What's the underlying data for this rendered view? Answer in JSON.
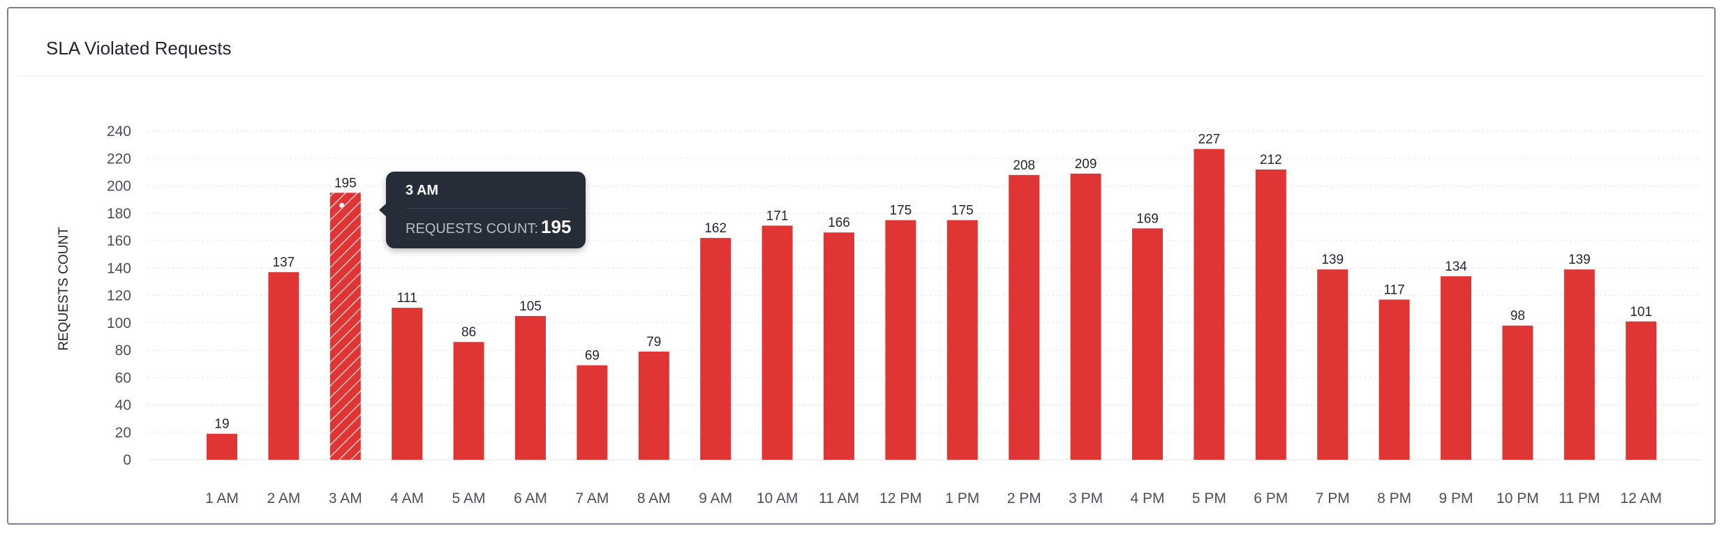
{
  "chart_data": {
    "type": "bar",
    "title": "SLA Violated Requests",
    "xlabel": "",
    "ylabel": "REQUESTS COUNT",
    "ylim": [
      0,
      240
    ],
    "yticks": [
      0,
      20,
      40,
      60,
      80,
      100,
      120,
      140,
      160,
      180,
      200,
      220,
      240
    ],
    "grid": true,
    "categories": [
      "1 AM",
      "2 AM",
      "3 AM",
      "4 AM",
      "5 AM",
      "6 AM",
      "7 AM",
      "8 AM",
      "9 AM",
      "10 AM",
      "11 AM",
      "12 PM",
      "1 PM",
      "2 PM",
      "3 PM",
      "4 PM",
      "5 PM",
      "6 PM",
      "7 PM",
      "8 PM",
      "9 PM",
      "10 PM",
      "11 PM",
      "12 AM"
    ],
    "values": [
      19,
      137,
      195,
      111,
      86,
      105,
      69,
      79,
      162,
      171,
      166,
      175,
      175,
      208,
      209,
      169,
      227,
      212,
      139,
      117,
      134,
      98,
      139,
      101
    ],
    "highlighted_category": "3 AM",
    "bar_color": "#e03535"
  },
  "tooltip": {
    "title": "3 AM",
    "label": "REQUESTS COUNT:",
    "value": "195"
  }
}
